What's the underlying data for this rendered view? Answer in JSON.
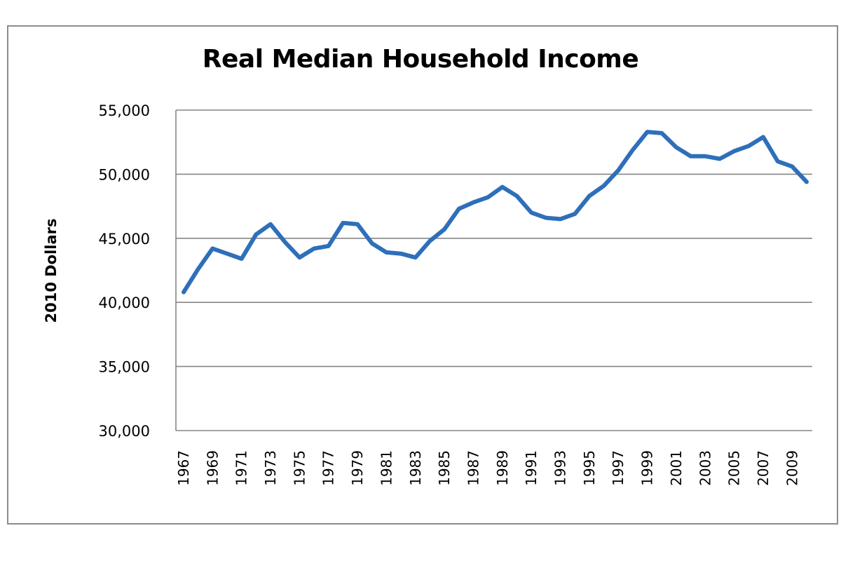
{
  "chart_data": {
    "type": "line",
    "title": "Real Median Household Income",
    "xlabel": "",
    "ylabel": "2010 Dollars",
    "ylim": [
      30000,
      55000
    ],
    "yticks": [
      30000,
      35000,
      40000,
      45000,
      50000,
      55000
    ],
    "ytick_labels": [
      "30,000",
      "35,000",
      "40,000",
      "45,000",
      "50,000",
      "55,000"
    ],
    "xtick_labels": [
      "1967",
      "1969",
      "1971",
      "1973",
      "1975",
      "1977",
      "1979",
      "1981",
      "1983",
      "1985",
      "1987",
      "1989",
      "1991",
      "1993",
      "1995",
      "1997",
      "1999",
      "2001",
      "2003",
      "2005",
      "2007",
      "2009"
    ],
    "grid": "horizontal",
    "legend": "none",
    "series": [
      {
        "color": "#2e6fba",
        "x": [
          1967,
          1968,
          1969,
          1970,
          1971,
          1972,
          1973,
          1974,
          1975,
          1976,
          1977,
          1978,
          1979,
          1980,
          1981,
          1982,
          1983,
          1984,
          1985,
          1986,
          1987,
          1988,
          1989,
          1990,
          1991,
          1992,
          1993,
          1994,
          1995,
          1996,
          1997,
          1998,
          1999,
          2000,
          2001,
          2002,
          2003,
          2004,
          2005,
          2006,
          2007,
          2008,
          2009,
          2010
        ],
        "values": [
          40800,
          42600,
          44200,
          43800,
          43400,
          45300,
          46100,
          44700,
          43500,
          44200,
          44400,
          46200,
          46100,
          44600,
          43900,
          43800,
          43500,
          44800,
          45700,
          47300,
          47800,
          48200,
          49000,
          48300,
          47000,
          46600,
          46500,
          46900,
          48300,
          49100,
          50300,
          51900,
          53300,
          53200,
          52100,
          51400,
          51400,
          51200,
          51800,
          52200,
          52900,
          51000,
          50600,
          49400
        ]
      }
    ]
  }
}
